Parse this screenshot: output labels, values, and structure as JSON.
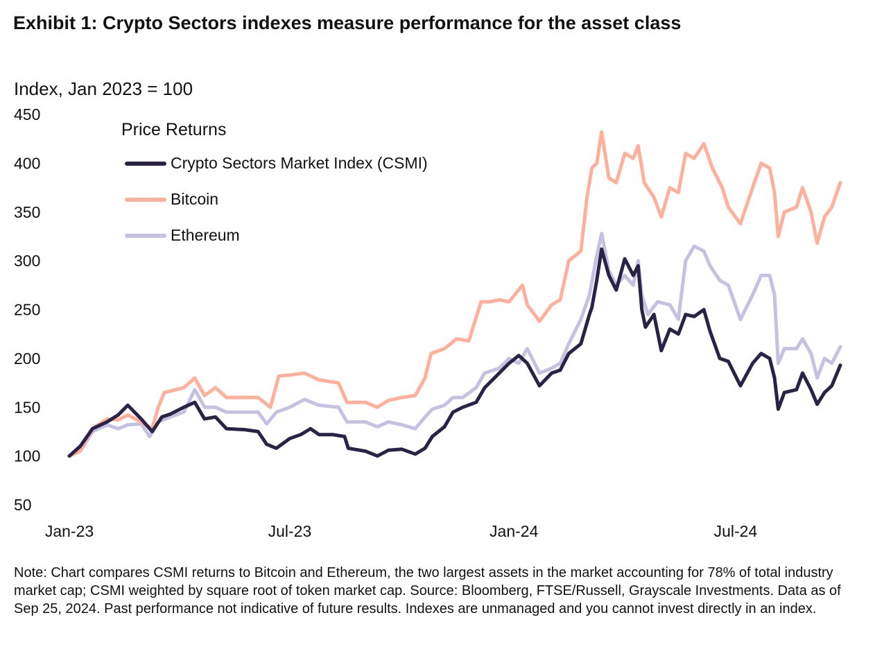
{
  "title": "Exhibit 1: Crypto Sectors indexes measure performance for the asset class",
  "note": "Note: Chart compares CSMI returns to Bitcoin and Ethereum, the two largest assets in the market accounting for 78% of total industry market cap; CSMI weighted by square root of token market cap. Source: Bloomberg, FTSE/Russell, Grayscale Investments. Data as of Sep 25, 2024. Past performance not indicative of future results. Indexes are unmanaged and you cannot invest directly in an index.",
  "chart_data": {
    "type": "line",
    "ylabel": "Index, Jan 2023 = 100",
    "legend_title": "Price Returns",
    "legend_position": "top-left",
    "grid": false,
    "ylim": [
      50,
      450
    ],
    "yticks": [
      50,
      100,
      150,
      200,
      250,
      300,
      350,
      400,
      450
    ],
    "xlim": [
      "2023-01-01",
      "2024-09-25"
    ],
    "xticks": [
      {
        "date": "2023-01-01",
        "label": "Jan-23"
      },
      {
        "date": "2023-07-01",
        "label": "Jul-23"
      },
      {
        "date": "2024-01-01",
        "label": "Jan-24"
      },
      {
        "date": "2024-07-01",
        "label": "Jul-24"
      }
    ],
    "series": [
      {
        "name": "Crypto Sectors Market Index (CSMI)",
        "color": "#2b2347",
        "points": [
          [
            "2023-01-01",
            100
          ],
          [
            "2023-01-10",
            110
          ],
          [
            "2023-01-20",
            128
          ],
          [
            "2023-02-01",
            135
          ],
          [
            "2023-02-10",
            142
          ],
          [
            "2023-02-18",
            152
          ],
          [
            "2023-03-01",
            138
          ],
          [
            "2023-03-10",
            125
          ],
          [
            "2023-03-18",
            140
          ],
          [
            "2023-03-25",
            143
          ],
          [
            "2023-04-05",
            150
          ],
          [
            "2023-04-14",
            155
          ],
          [
            "2023-04-22",
            138
          ],
          [
            "2023-05-01",
            140
          ],
          [
            "2023-05-10",
            128
          ],
          [
            "2023-05-25",
            127
          ],
          [
            "2023-06-05",
            125
          ],
          [
            "2023-06-12",
            112
          ],
          [
            "2023-06-20",
            108
          ],
          [
            "2023-07-01",
            118
          ],
          [
            "2023-07-10",
            122
          ],
          [
            "2023-07-18",
            128
          ],
          [
            "2023-07-25",
            122
          ],
          [
            "2023-08-05",
            122
          ],
          [
            "2023-08-15",
            120
          ],
          [
            "2023-08-18",
            108
          ],
          [
            "2023-09-01",
            105
          ],
          [
            "2023-09-11",
            100
          ],
          [
            "2023-09-20",
            106
          ],
          [
            "2023-10-01",
            107
          ],
          [
            "2023-10-12",
            102
          ],
          [
            "2023-10-20",
            108
          ],
          [
            "2023-10-26",
            120
          ],
          [
            "2023-11-05",
            130
          ],
          [
            "2023-11-12",
            145
          ],
          [
            "2023-11-20",
            150
          ],
          [
            "2023-12-01",
            155
          ],
          [
            "2023-12-08",
            170
          ],
          [
            "2023-12-20",
            185
          ],
          [
            "2023-12-28",
            195
          ],
          [
            "2024-01-05",
            203
          ],
          [
            "2024-01-12",
            195
          ],
          [
            "2024-01-22",
            172
          ],
          [
            "2024-02-01",
            185
          ],
          [
            "2024-02-08",
            188
          ],
          [
            "2024-02-15",
            205
          ],
          [
            "2024-02-25",
            215
          ],
          [
            "2024-03-03",
            245
          ],
          [
            "2024-03-05",
            252
          ],
          [
            "2024-03-09",
            280
          ],
          [
            "2024-03-13",
            312
          ],
          [
            "2024-03-19",
            285
          ],
          [
            "2024-03-25",
            270
          ],
          [
            "2024-04-01",
            302
          ],
          [
            "2024-04-08",
            285
          ],
          [
            "2024-04-12",
            295
          ],
          [
            "2024-04-15",
            250
          ],
          [
            "2024-04-18",
            232
          ],
          [
            "2024-04-25",
            245
          ],
          [
            "2024-05-01",
            208
          ],
          [
            "2024-05-08",
            230
          ],
          [
            "2024-05-15",
            225
          ],
          [
            "2024-05-21",
            245
          ],
          [
            "2024-05-28",
            243
          ],
          [
            "2024-06-05",
            250
          ],
          [
            "2024-06-10",
            228
          ],
          [
            "2024-06-18",
            200
          ],
          [
            "2024-06-25",
            197
          ],
          [
            "2024-07-05",
            172
          ],
          [
            "2024-07-15",
            195
          ],
          [
            "2024-07-22",
            205
          ],
          [
            "2024-07-29",
            200
          ],
          [
            "2024-08-02",
            180
          ],
          [
            "2024-08-05",
            148
          ],
          [
            "2024-08-10",
            165
          ],
          [
            "2024-08-20",
            168
          ],
          [
            "2024-08-25",
            185
          ],
          [
            "2024-09-01",
            168
          ],
          [
            "2024-09-06",
            153
          ],
          [
            "2024-09-12",
            165
          ],
          [
            "2024-09-18",
            172
          ],
          [
            "2024-09-25",
            193
          ]
        ]
      },
      {
        "name": "Bitcoin",
        "color": "#ffb09a",
        "points": [
          [
            "2023-01-01",
            100
          ],
          [
            "2023-01-10",
            105
          ],
          [
            "2023-01-20",
            128
          ],
          [
            "2023-02-01",
            138
          ],
          [
            "2023-02-10",
            137
          ],
          [
            "2023-02-18",
            142
          ],
          [
            "2023-03-01",
            135
          ],
          [
            "2023-03-10",
            128
          ],
          [
            "2023-03-15",
            150
          ],
          [
            "2023-03-20",
            165
          ],
          [
            "2023-04-05",
            170
          ],
          [
            "2023-04-14",
            180
          ],
          [
            "2023-04-22",
            162
          ],
          [
            "2023-05-01",
            170
          ],
          [
            "2023-05-10",
            160
          ],
          [
            "2023-05-25",
            160
          ],
          [
            "2023-06-05",
            160
          ],
          [
            "2023-06-15",
            150
          ],
          [
            "2023-06-22",
            182
          ],
          [
            "2023-07-01",
            183
          ],
          [
            "2023-07-13",
            185
          ],
          [
            "2023-07-25",
            178
          ],
          [
            "2023-08-10",
            175
          ],
          [
            "2023-08-17",
            155
          ],
          [
            "2023-09-01",
            155
          ],
          [
            "2023-09-11",
            150
          ],
          [
            "2023-09-20",
            157
          ],
          [
            "2023-10-01",
            160
          ],
          [
            "2023-10-12",
            162
          ],
          [
            "2023-10-20",
            180
          ],
          [
            "2023-10-25",
            205
          ],
          [
            "2023-11-05",
            210
          ],
          [
            "2023-11-15",
            220
          ],
          [
            "2023-11-25",
            218
          ],
          [
            "2023-12-05",
            258
          ],
          [
            "2023-12-12",
            258
          ],
          [
            "2023-12-20",
            260
          ],
          [
            "2023-12-28",
            258
          ],
          [
            "2024-01-08",
            275
          ],
          [
            "2024-01-12",
            255
          ],
          [
            "2024-01-22",
            238
          ],
          [
            "2024-02-01",
            255
          ],
          [
            "2024-02-08",
            260
          ],
          [
            "2024-02-15",
            300
          ],
          [
            "2024-02-25",
            310
          ],
          [
            "2024-03-01",
            365
          ],
          [
            "2024-03-05",
            395
          ],
          [
            "2024-03-09",
            400
          ],
          [
            "2024-03-13",
            432
          ],
          [
            "2024-03-19",
            385
          ],
          [
            "2024-03-25",
            380
          ],
          [
            "2024-04-01",
            410
          ],
          [
            "2024-04-08",
            405
          ],
          [
            "2024-04-12",
            418
          ],
          [
            "2024-04-17",
            380
          ],
          [
            "2024-04-25",
            365
          ],
          [
            "2024-05-01",
            345
          ],
          [
            "2024-05-08",
            375
          ],
          [
            "2024-05-15",
            370
          ],
          [
            "2024-05-21",
            410
          ],
          [
            "2024-05-28",
            405
          ],
          [
            "2024-06-05",
            420
          ],
          [
            "2024-06-12",
            395
          ],
          [
            "2024-06-20",
            375
          ],
          [
            "2024-06-25",
            355
          ],
          [
            "2024-07-05",
            338
          ],
          [
            "2024-07-15",
            375
          ],
          [
            "2024-07-22",
            400
          ],
          [
            "2024-07-29",
            395
          ],
          [
            "2024-08-02",
            370
          ],
          [
            "2024-08-05",
            325
          ],
          [
            "2024-08-10",
            350
          ],
          [
            "2024-08-20",
            355
          ],
          [
            "2024-08-25",
            375
          ],
          [
            "2024-09-01",
            350
          ],
          [
            "2024-09-06",
            318
          ],
          [
            "2024-09-12",
            345
          ],
          [
            "2024-09-18",
            355
          ],
          [
            "2024-09-25",
            380
          ]
        ]
      },
      {
        "name": "Ethereum",
        "color": "#c6c1e3",
        "points": [
          [
            "2023-01-01",
            100
          ],
          [
            "2023-01-10",
            105
          ],
          [
            "2023-01-20",
            125
          ],
          [
            "2023-02-01",
            132
          ],
          [
            "2023-02-10",
            128
          ],
          [
            "2023-02-18",
            132
          ],
          [
            "2023-03-01",
            133
          ],
          [
            "2023-03-08",
            120
          ],
          [
            "2023-03-15",
            135
          ],
          [
            "2023-03-25",
            140
          ],
          [
            "2023-04-05",
            145
          ],
          [
            "2023-04-14",
            168
          ],
          [
            "2023-04-22",
            150
          ],
          [
            "2023-05-01",
            150
          ],
          [
            "2023-05-10",
            145
          ],
          [
            "2023-05-25",
            145
          ],
          [
            "2023-06-05",
            145
          ],
          [
            "2023-06-12",
            133
          ],
          [
            "2023-06-20",
            145
          ],
          [
            "2023-07-01",
            150
          ],
          [
            "2023-07-13",
            158
          ],
          [
            "2023-07-25",
            152
          ],
          [
            "2023-08-10",
            150
          ],
          [
            "2023-08-17",
            135
          ],
          [
            "2023-09-01",
            135
          ],
          [
            "2023-09-11",
            130
          ],
          [
            "2023-09-20",
            135
          ],
          [
            "2023-10-01",
            132
          ],
          [
            "2023-10-12",
            128
          ],
          [
            "2023-10-20",
            140
          ],
          [
            "2023-10-26",
            148
          ],
          [
            "2023-11-05",
            152
          ],
          [
            "2023-11-12",
            160
          ],
          [
            "2023-11-20",
            160
          ],
          [
            "2023-12-01",
            170
          ],
          [
            "2023-12-08",
            185
          ],
          [
            "2023-12-20",
            190
          ],
          [
            "2023-12-28",
            200
          ],
          [
            "2024-01-05",
            195
          ],
          [
            "2024-01-12",
            210
          ],
          [
            "2024-01-22",
            185
          ],
          [
            "2024-02-01",
            190
          ],
          [
            "2024-02-08",
            195
          ],
          [
            "2024-02-15",
            215
          ],
          [
            "2024-02-25",
            240
          ],
          [
            "2024-03-03",
            265
          ],
          [
            "2024-03-09",
            305
          ],
          [
            "2024-03-13",
            328
          ],
          [
            "2024-03-19",
            290
          ],
          [
            "2024-03-25",
            275
          ],
          [
            "2024-04-01",
            285
          ],
          [
            "2024-04-08",
            275
          ],
          [
            "2024-04-12",
            300
          ],
          [
            "2024-04-15",
            265
          ],
          [
            "2024-04-20",
            245
          ],
          [
            "2024-04-28",
            258
          ],
          [
            "2024-05-08",
            255
          ],
          [
            "2024-05-15",
            240
          ],
          [
            "2024-05-21",
            300
          ],
          [
            "2024-05-28",
            315
          ],
          [
            "2024-06-05",
            310
          ],
          [
            "2024-06-10",
            295
          ],
          [
            "2024-06-18",
            280
          ],
          [
            "2024-06-25",
            275
          ],
          [
            "2024-07-05",
            240
          ],
          [
            "2024-07-15",
            265
          ],
          [
            "2024-07-22",
            285
          ],
          [
            "2024-07-29",
            285
          ],
          [
            "2024-08-02",
            265
          ],
          [
            "2024-08-05",
            195
          ],
          [
            "2024-08-10",
            210
          ],
          [
            "2024-08-20",
            210
          ],
          [
            "2024-08-25",
            220
          ],
          [
            "2024-09-01",
            205
          ],
          [
            "2024-09-06",
            180
          ],
          [
            "2024-09-12",
            200
          ],
          [
            "2024-09-18",
            195
          ],
          [
            "2024-09-25",
            212
          ]
        ]
      }
    ]
  }
}
